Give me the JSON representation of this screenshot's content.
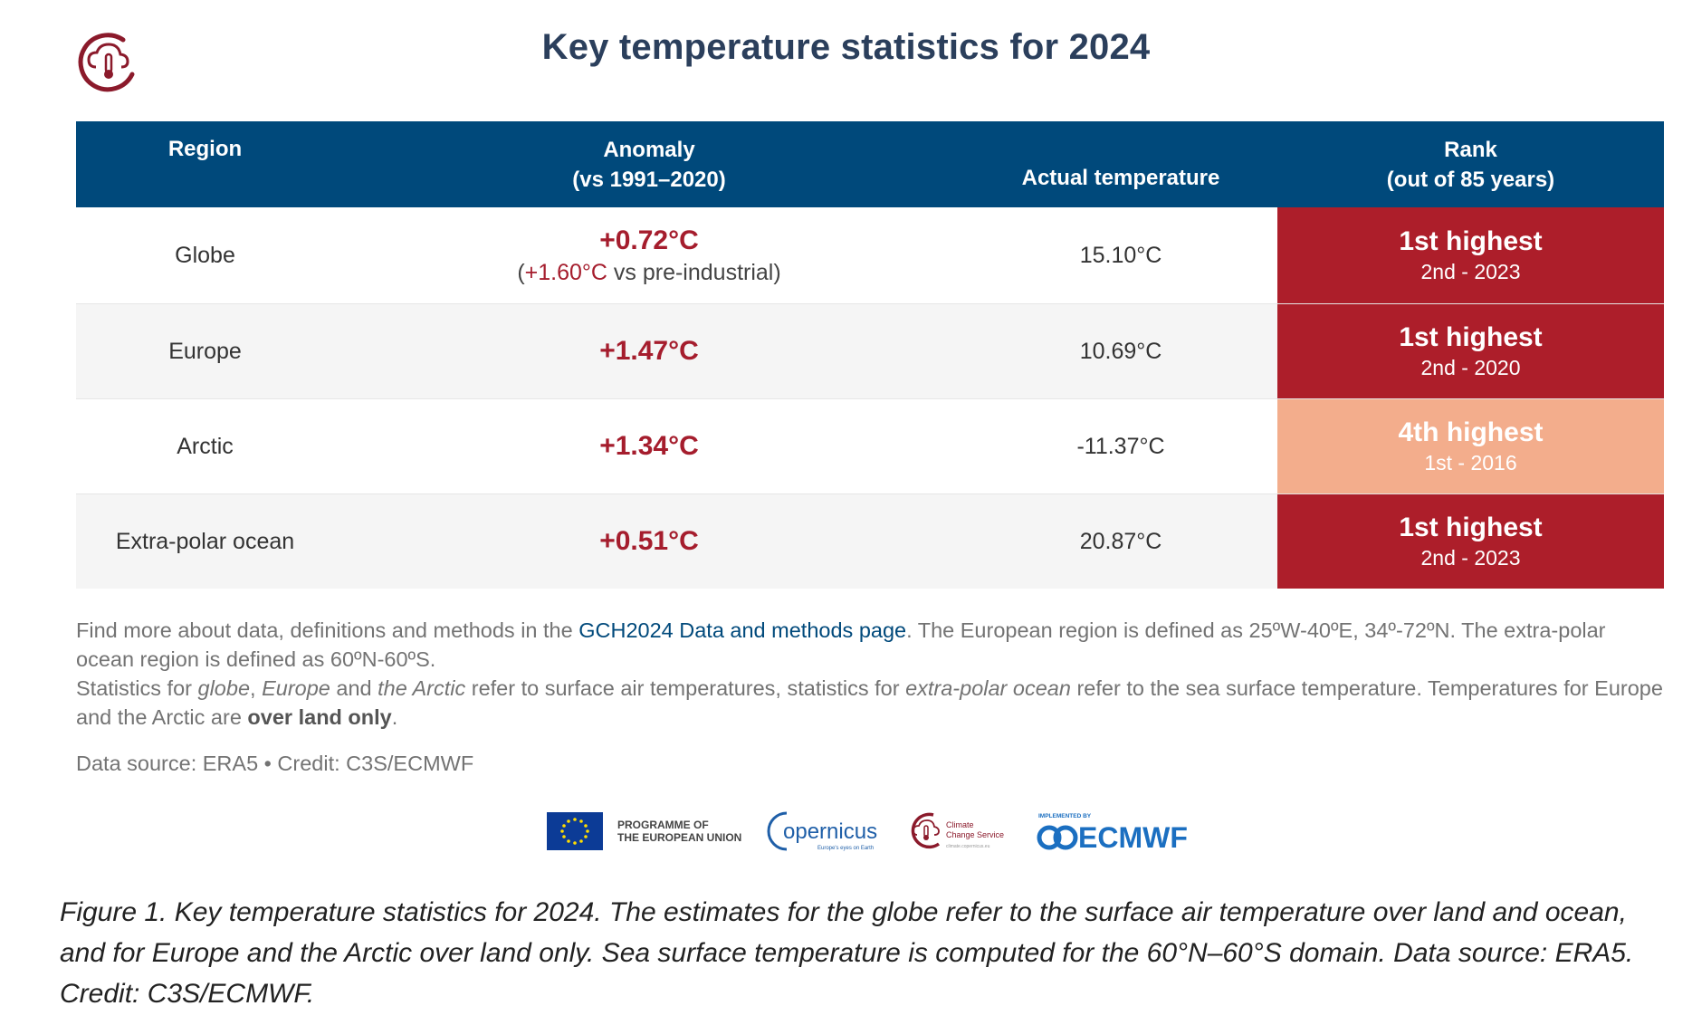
{
  "header": {
    "title": "Key temperature statistics for 2024"
  },
  "table": {
    "columns": {
      "region": "Region",
      "anomaly_line1": "Anomaly",
      "anomaly_line2": "(vs 1991–2020)",
      "actual": "Actual temperature",
      "rank_line1": "Rank",
      "rank_line2": "(out of 85 years)"
    },
    "rows": [
      {
        "region": "Globe",
        "anomaly": "+0.72°C",
        "anomaly_sub_open": "(",
        "anomaly_sub_value": "+1.60°C",
        "anomaly_sub_rest": " vs pre-industrial)",
        "actual": "15.10°C",
        "rank": "1st highest",
        "rank_sub": "2nd - 2023",
        "rank_color": "#ad1e2a"
      },
      {
        "region": "Europe",
        "anomaly": "+1.47°C",
        "actual": "10.69°C",
        "rank": "1st highest",
        "rank_sub": "2nd - 2020",
        "rank_color": "#ad1e2a"
      },
      {
        "region": "Arctic",
        "anomaly": "+1.34°C",
        "actual": "-11.37°C",
        "rank": "4th highest",
        "rank_sub": "1st - 2016",
        "rank_color": "#f3ad8c"
      },
      {
        "region": "Extra-polar ocean",
        "anomaly": "+0.51°C",
        "actual": "20.87°C",
        "rank": "1st highest",
        "rank_sub": "2nd - 2023",
        "rank_color": "#ad1e2a"
      }
    ]
  },
  "notes": {
    "p1_a": "Find more about data, definitions and methods in the ",
    "p1_link": "GCH2024 Data and methods page",
    "p1_b": ". The European region is defined as 25ºW-40ºE, 34º-72ºN. The extra-polar ocean region is defined as 60ºN-60ºS.",
    "p2_a": "Statistics for ",
    "p2_globe": "globe",
    "p2_comma": ", ",
    "p2_europe": "Europe",
    "p2_and": " and ",
    "p2_arctic": "the Arctic",
    "p2_b": " refer to surface air temperatures, statistics for ",
    "p2_ocean": "extra-polar ocean",
    "p2_c": " refer to the sea surface temperature. Temperatures for Europe and the Arctic are ",
    "p2_bold": "over land only",
    "p2_end": ".",
    "source": "Data source: ERA5 • Credit: C3S/ECMWF"
  },
  "logos": {
    "eu_line1": "PROGRAMME OF",
    "eu_line2": "THE EUROPEAN UNION",
    "copernicus": "opernicus",
    "copernicus_tagline": "Europe's eyes on Earth",
    "c3s_line1": "Climate",
    "c3s_line2": "Change Service",
    "c3s_url": "climate.copernicus.eu",
    "ecmwf_small": "IMPLEMENTED BY",
    "ecmwf": "ECMWF"
  },
  "caption": "Figure 1. Key temperature statistics for 2024. The estimates for the globe refer to the surface air temperature over land and ocean, and for Europe and the Arctic over land only. Sea surface temperature is computed for the 60°N–60°S domain. Data source: ERA5. Credit: C3S/ECMWF.",
  "colors": {
    "header_bg": "#00497b",
    "title": "#2b3f5c",
    "anomaly": "#a51d2d",
    "rank_dark": "#ad1e2a",
    "rank_light": "#f3ad8c"
  }
}
